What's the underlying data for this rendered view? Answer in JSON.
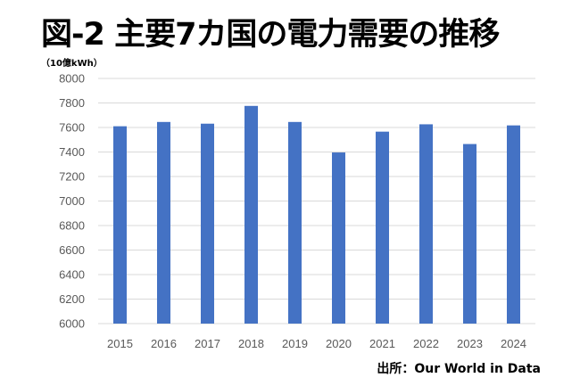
{
  "chart_data": {
    "type": "bar",
    "title": "図-2 主要7カ国の電力需要の推移",
    "ylabel": "（10億kWh）",
    "xlabel": "",
    "source": "出所：Our World in Data",
    "categories": [
      "2015",
      "2016",
      "2017",
      "2018",
      "2019",
      "2020",
      "2021",
      "2022",
      "2023",
      "2024"
    ],
    "values": [
      7610,
      7645,
      7631,
      7776,
      7645,
      7396,
      7566,
      7626,
      7465,
      7617
    ],
    "ylim": [
      6000,
      8000
    ],
    "yticks": [
      6000,
      6200,
      6400,
      6600,
      6800,
      7000,
      7200,
      7400,
      7600,
      7800,
      8000
    ],
    "grid": true,
    "bar_color": "#4472C4",
    "grid_color": "#D9D9D9"
  }
}
